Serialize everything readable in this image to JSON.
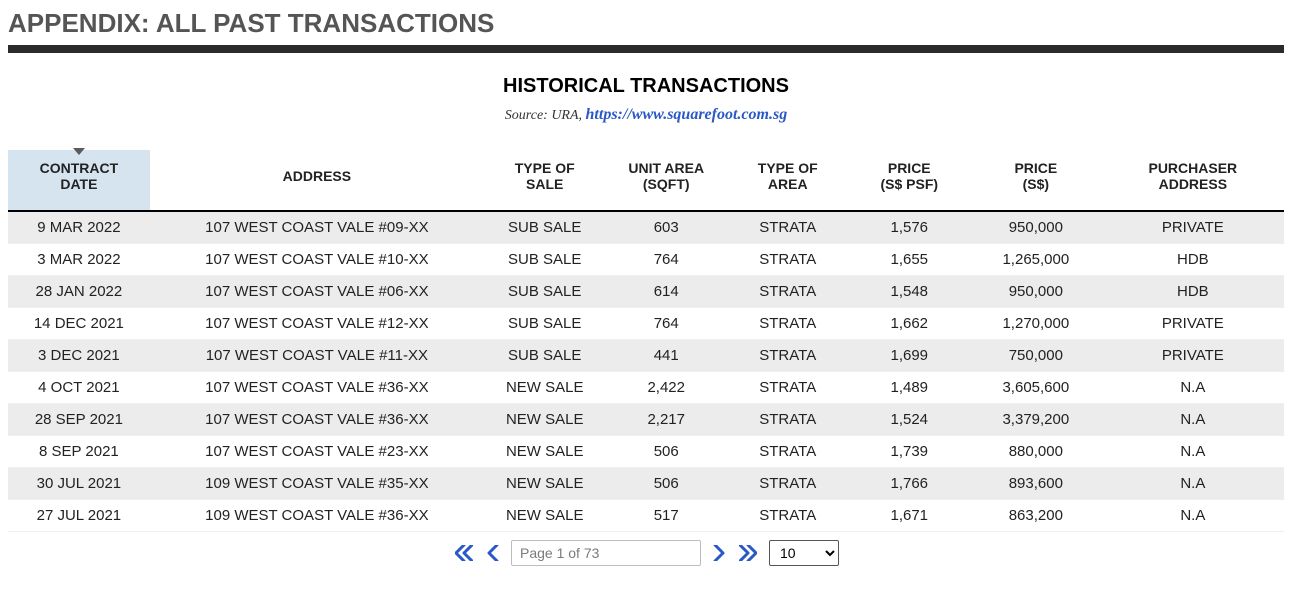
{
  "header": {
    "page_title": "APPENDIX: ALL PAST TRANSACTIONS",
    "section_title": "HISTORICAL TRANSACTIONS",
    "source_prefix": "Source: URA, ",
    "source_link_text": "https://www.squarefoot.com.sg"
  },
  "table": {
    "columns": [
      {
        "key": "date",
        "label_l1": "CONTRACT",
        "label_l2": "DATE",
        "class": "c-date",
        "sorted": true
      },
      {
        "key": "address",
        "label_l1": "ADDRESS",
        "label_l2": "",
        "class": "c-addr"
      },
      {
        "key": "type_sale",
        "label_l1": "TYPE OF",
        "label_l2": "SALE",
        "class": "c-type"
      },
      {
        "key": "unit_area",
        "label_l1": "UNIT AREA",
        "label_l2": "(SQFT)",
        "class": "c-area"
      },
      {
        "key": "area_type",
        "label_l1": "TYPE OF",
        "label_l2": "AREA",
        "class": "c-atype"
      },
      {
        "key": "psf",
        "label_l1": "PRICE",
        "label_l2": "(S$ PSF)",
        "class": "c-psf"
      },
      {
        "key": "price",
        "label_l1": "PRICE",
        "label_l2": "(S$)",
        "class": "c-price"
      },
      {
        "key": "purchaser",
        "label_l1": "PURCHASER",
        "label_l2": "ADDRESS",
        "class": "c-purch"
      }
    ],
    "rows": [
      [
        "9 MAR 2022",
        "107 WEST COAST VALE #09-XX",
        "SUB SALE",
        "603",
        "STRATA",
        "1,576",
        "950,000",
        "PRIVATE"
      ],
      [
        "3 MAR 2022",
        "107 WEST COAST VALE #10-XX",
        "SUB SALE",
        "764",
        "STRATA",
        "1,655",
        "1,265,000",
        "HDB"
      ],
      [
        "28 JAN 2022",
        "107 WEST COAST VALE #06-XX",
        "SUB SALE",
        "614",
        "STRATA",
        "1,548",
        "950,000",
        "HDB"
      ],
      [
        "14 DEC 2021",
        "107 WEST COAST VALE #12-XX",
        "SUB SALE",
        "764",
        "STRATA",
        "1,662",
        "1,270,000",
        "PRIVATE"
      ],
      [
        "3 DEC 2021",
        "107 WEST COAST VALE #11-XX",
        "SUB SALE",
        "441",
        "STRATA",
        "1,699",
        "750,000",
        "PRIVATE"
      ],
      [
        "4 OCT 2021",
        "107 WEST COAST VALE #36-XX",
        "NEW SALE",
        "2,422",
        "STRATA",
        "1,489",
        "3,605,600",
        "N.A"
      ],
      [
        "28 SEP 2021",
        "107 WEST COAST VALE #36-XX",
        "NEW SALE",
        "2,217",
        "STRATA",
        "1,524",
        "3,379,200",
        "N.A"
      ],
      [
        "8 SEP 2021",
        "107 WEST COAST VALE #23-XX",
        "NEW SALE",
        "506",
        "STRATA",
        "1,739",
        "880,000",
        "N.A"
      ],
      [
        "30 JUL 2021",
        "109 WEST COAST VALE #35-XX",
        "NEW SALE",
        "506",
        "STRATA",
        "1,766",
        "893,600",
        "N.A"
      ],
      [
        "27 JUL 2021",
        "109 WEST COAST VALE #36-XX",
        "NEW SALE",
        "517",
        "STRATA",
        "1,671",
        "863,200",
        "N.A"
      ]
    ]
  },
  "pager": {
    "page_text": "Page 1 of 73",
    "page_size": "10"
  },
  "style": {
    "header_sorted_bg": "#d6e4f0",
    "row_alt_bg": "#ececec",
    "link_color": "#2a58c7",
    "rule_color": "#2b2b2b",
    "title_color": "#555555"
  }
}
